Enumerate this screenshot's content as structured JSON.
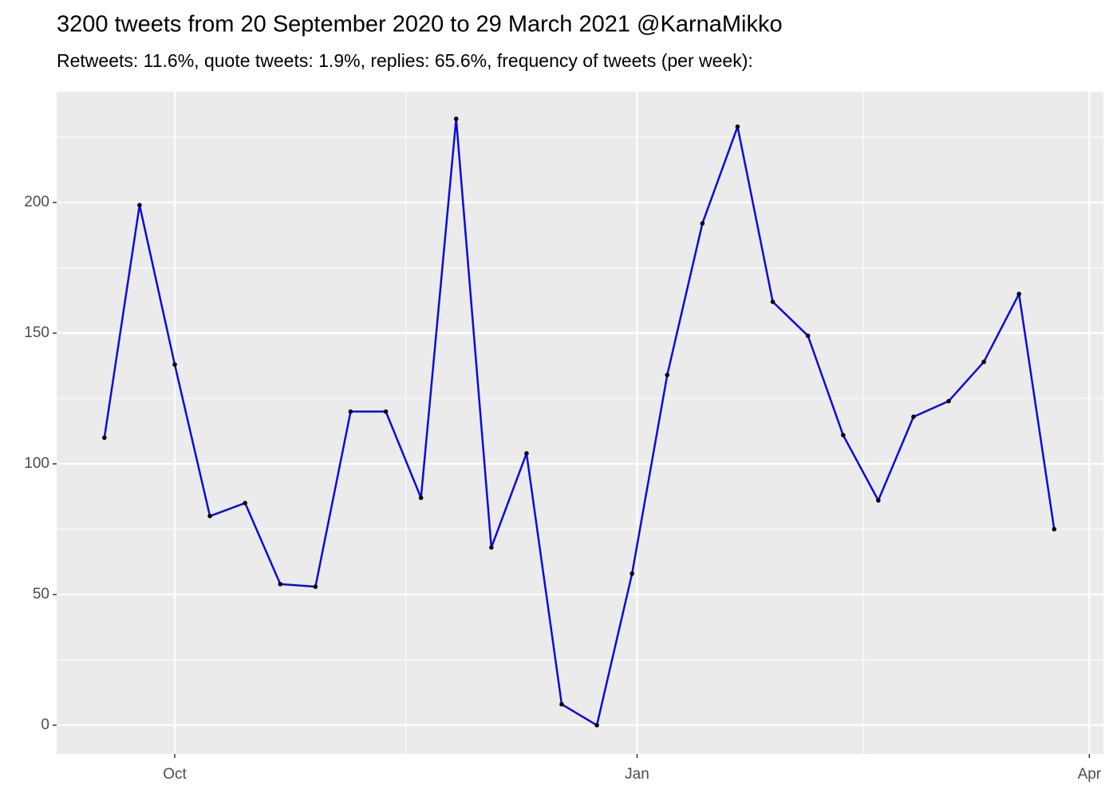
{
  "chart_data": {
    "type": "line",
    "title": "3200 tweets from 20 September 2020 to 29 March 2021 @KarnaMikko",
    "subtitle": "Retweets: 11.6%, quote tweets: 1.9%, replies: 65.6%, frequency of tweets (per week):",
    "x": [
      -14,
      -7,
      0,
      7,
      14,
      21,
      28,
      35,
      42,
      49,
      56,
      63,
      70,
      77,
      84,
      91,
      98,
      105,
      112,
      119,
      126,
      133,
      140,
      147,
      154,
      161,
      168,
      175
    ],
    "series": [
      {
        "color": "#0a0add",
        "point_color": "#000000",
        "values": [
          110,
          199,
          138,
          80,
          85,
          54,
          53,
          120,
          120,
          87,
          232,
          68,
          104,
          8,
          0,
          58,
          134,
          192,
          229,
          162,
          149,
          111,
          86,
          118,
          124,
          139,
          165,
          75
        ]
      }
    ],
    "xlim": [
      -23.5,
      184.8
    ],
    "xticks": [
      {
        "value": 0,
        "label": "Oct"
      },
      {
        "value": 92,
        "label": "Jan"
      },
      {
        "value": 182,
        "label": "Apr"
      }
    ],
    "xminorticks": [
      46,
      137
    ],
    "ylim": [
      -11,
      242.4
    ],
    "yticks": [
      0,
      50,
      100,
      150,
      200
    ],
    "yminorticks": [
      25,
      75,
      125,
      175,
      225
    ],
    "grid": true
  }
}
